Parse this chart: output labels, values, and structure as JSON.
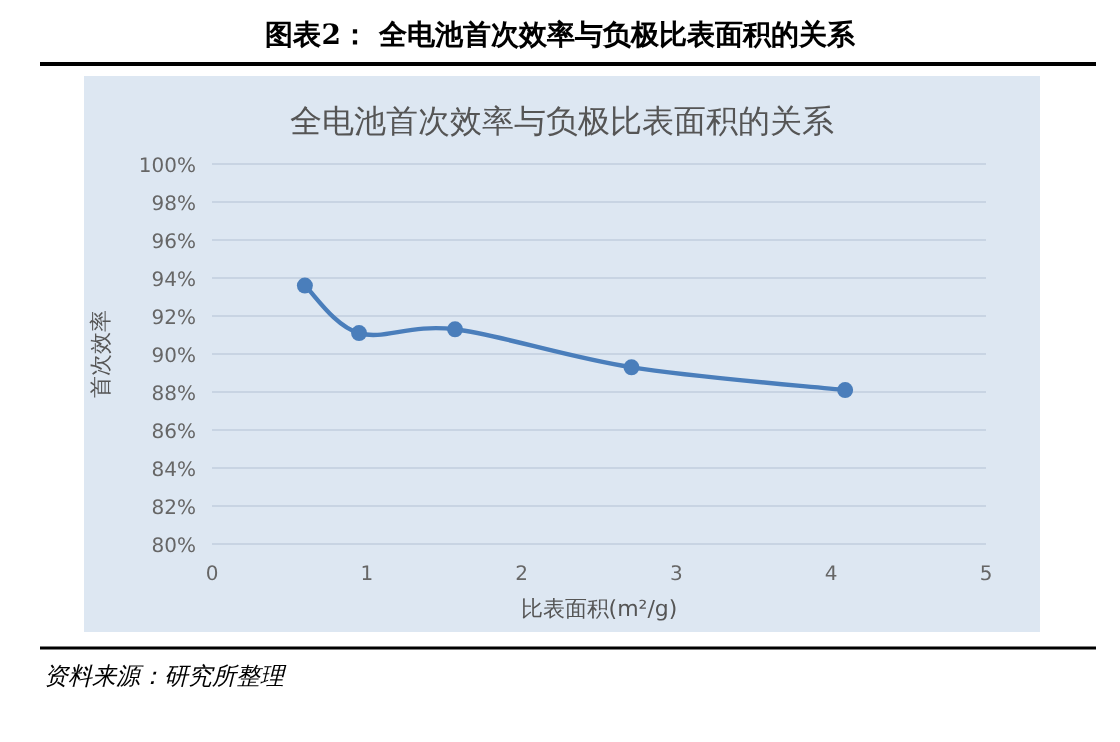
{
  "chart_data": {
    "type": "line",
    "title": "图表2：  全电池首次效率与负极比表面积的关系",
    "subtitle": "全电池首次效率与负极比表面积的关系",
    "xlabel": "比表面积(m²/g)",
    "ylabel": "首次效率",
    "annotations": [
      "资料来源：研究所整理"
    ],
    "x": [
      0.6,
      0.95,
      1.57,
      2.71,
      4.09
    ],
    "series": [
      {
        "color": "#4a7ebb",
        "values": [
          93.6,
          91.1,
          91.3,
          89.3,
          88.1
        ]
      }
    ],
    "xlim": [
      0,
      5
    ],
    "xticks": [
      0,
      1,
      2,
      3,
      4,
      5
    ],
    "ylim": [
      80,
      100
    ],
    "yticks": [
      {
        "value": 80,
        "label": "80%"
      },
      {
        "value": 82,
        "label": "82%"
      },
      {
        "value": 84,
        "label": "84%"
      },
      {
        "value": 86,
        "label": "86%"
      },
      {
        "value": 88,
        "label": "88%"
      },
      {
        "value": 90,
        "label": "90%"
      },
      {
        "value": 92,
        "label": "92%"
      },
      {
        "value": 94,
        "label": "94%"
      },
      {
        "value": 96,
        "label": "96%"
      },
      {
        "value": 98,
        "label": "98%"
      },
      {
        "value": 100,
        "label": "100%"
      }
    ],
    "grid": "y",
    "marker": "circle",
    "line_style": "solid"
  }
}
